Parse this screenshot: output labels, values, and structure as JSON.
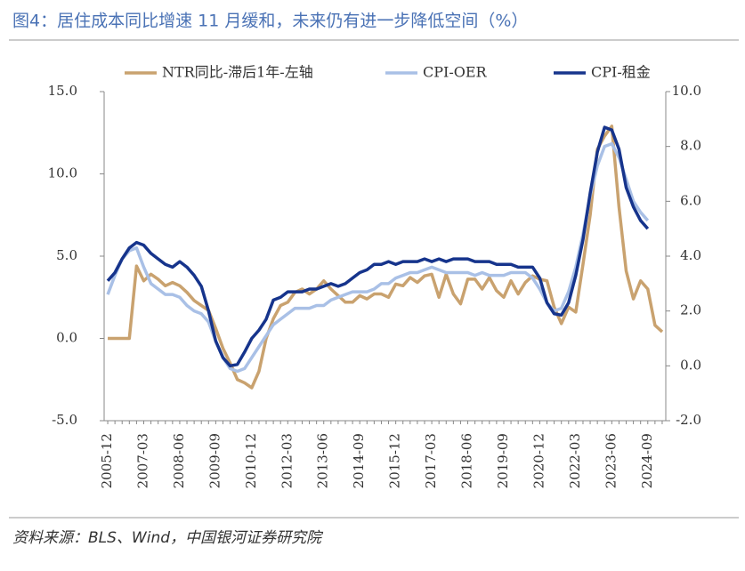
{
  "title": "图4：居住成本同比增速 11 月缓和，未来仍有进一步降低空间（%）",
  "source": "资料来源：BLS、Wind，中国银河证券研究院",
  "chart_data": {
    "type": "line",
    "categories": [
      "2005-12",
      null,
      null,
      null,
      null,
      "2007-03",
      null,
      null,
      null,
      null,
      "2008-06",
      null,
      null,
      null,
      null,
      "2009-09",
      null,
      null,
      null,
      null,
      "2010-12",
      null,
      null,
      null,
      null,
      "2012-03",
      null,
      null,
      null,
      null,
      "2013-06",
      null,
      null,
      null,
      null,
      "2014-09",
      null,
      null,
      null,
      null,
      "2015-12",
      null,
      null,
      null,
      null,
      "2017-03",
      null,
      null,
      null,
      null,
      "2018-06",
      null,
      null,
      null,
      null,
      "2019-09",
      null,
      null,
      null,
      null,
      "2020-12",
      null,
      null,
      null,
      null,
      "2022-03",
      null,
      null,
      null,
      null,
      "2023-06",
      null,
      null,
      null,
      null,
      "2024-09",
      null,
      null
    ],
    "series": [
      {
        "name": "NTR同比-滞后1年-左轴",
        "color": "#c9a26f",
        "axis": "y",
        "values": [
          0,
          0,
          0,
          0,
          4.4,
          3.5,
          3.9,
          3.6,
          3.2,
          3.4,
          3.2,
          2.8,
          2.3,
          2.0,
          1.7,
          0.6,
          -0.6,
          -1.5,
          -2.5,
          -2.7,
          -3.0,
          -2.0,
          0.0,
          1.2,
          2.0,
          2.2,
          2.8,
          3.0,
          2.7,
          3.0,
          3.5,
          3.0,
          2.6,
          2.2,
          2.2,
          2.6,
          2.4,
          2.7,
          2.7,
          2.5,
          3.3,
          3.2,
          3.7,
          3.4,
          3.8,
          3.9,
          2.5,
          3.9,
          2.7,
          2.1,
          3.6,
          3.6,
          3.0,
          3.7,
          2.9,
          2.5,
          3.5,
          2.7,
          3.4,
          3.8,
          3.6,
          3.5,
          1.9,
          0.9,
          1.9,
          1.6,
          4.5,
          7.5,
          11.5,
          12.3,
          12.9,
          8.0,
          4.1,
          2.4,
          3.5,
          3.0,
          0.8,
          0.4
        ]
      },
      {
        "name": "CPI-OER",
        "color": "#a9c0e6",
        "axis": "y2",
        "values": [
          2.6,
          3.3,
          3.9,
          4.2,
          4.3,
          3.6,
          3.0,
          2.8,
          2.6,
          2.6,
          2.5,
          2.2,
          2.0,
          1.9,
          1.6,
          0.9,
          0.3,
          -0.1,
          -0.2,
          -0.1,
          0.3,
          0.7,
          1.1,
          1.5,
          1.7,
          1.9,
          2.1,
          2.1,
          2.1,
          2.2,
          2.2,
          2.4,
          2.5,
          2.6,
          2.7,
          2.7,
          2.7,
          2.8,
          3.0,
          3.0,
          3.2,
          3.3,
          3.4,
          3.4,
          3.5,
          3.6,
          3.5,
          3.4,
          3.4,
          3.4,
          3.4,
          3.3,
          3.4,
          3.3,
          3.3,
          3.3,
          3.4,
          3.4,
          3.4,
          3.2,
          2.8,
          2.3,
          2.0,
          2.1,
          2.7,
          3.6,
          4.8,
          6.2,
          7.3,
          8.0,
          8.1,
          7.6,
          6.8,
          6.0,
          5.6,
          5.3,
          null,
          null
        ]
      },
      {
        "name": "CPI-租金",
        "color": "#16348c",
        "axis": "y2",
        "values": [
          3.1,
          3.4,
          3.9,
          4.3,
          4.5,
          4.4,
          4.1,
          3.9,
          3.7,
          3.6,
          3.8,
          3.6,
          3.3,
          2.9,
          2.0,
          0.9,
          0.3,
          0.0,
          0.05,
          0.5,
          1.0,
          1.3,
          1.7,
          2.4,
          2.5,
          2.7,
          2.7,
          2.7,
          2.8,
          2.8,
          2.9,
          3.0,
          2.9,
          3.0,
          3.2,
          3.4,
          3.5,
          3.7,
          3.7,
          3.8,
          3.7,
          3.8,
          3.8,
          3.8,
          3.9,
          3.8,
          3.9,
          3.8,
          3.9,
          3.9,
          3.9,
          3.8,
          3.8,
          3.8,
          3.7,
          3.7,
          3.7,
          3.6,
          3.6,
          3.6,
          3.2,
          2.3,
          1.9,
          1.85,
          2.3,
          3.3,
          4.6,
          6.3,
          7.8,
          8.7,
          8.6,
          7.9,
          6.5,
          5.8,
          5.3,
          5.0,
          null,
          null
        ]
      }
    ],
    "ylim": [
      -5,
      15
    ],
    "yticks": [
      {
        "value": -5,
        "label": "-5.0"
      },
      {
        "value": 0,
        "label": "0.0"
      },
      {
        "value": 5,
        "label": "5.0"
      },
      {
        "value": 10,
        "label": "10.0"
      },
      {
        "value": 15,
        "label": "15.0"
      }
    ],
    "y2lim": [
      -2,
      10
    ],
    "y2ticks": [
      {
        "value": -2,
        "label": "-2.0"
      },
      {
        "value": 0,
        "label": "0.0"
      },
      {
        "value": 2,
        "label": "2.0"
      },
      {
        "value": 4,
        "label": "4.0"
      },
      {
        "value": 6,
        "label": "6.0"
      },
      {
        "value": 8,
        "label": "8.0"
      },
      {
        "value": 10,
        "label": "10.0"
      }
    ],
    "legend": "top",
    "grid": false
  }
}
